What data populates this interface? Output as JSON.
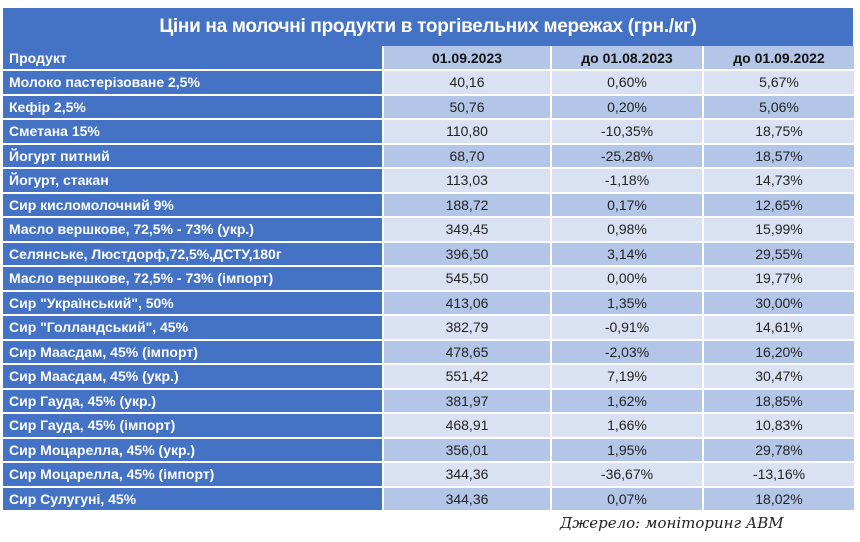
{
  "title": "Ціни на молочні продукти в торгівельних мережах (грн./кг)",
  "columns": [
    "Продукт",
    "01.09.2023",
    "до 01.08.2023",
    "до 01.09.2022"
  ],
  "rows": [
    [
      "Молоко пастерізоване 2,5%",
      "40,16",
      "0,60%",
      "5,67%"
    ],
    [
      "Кефір 2,5%",
      "50,76",
      "0,20%",
      "5,06%"
    ],
    [
      "Сметана 15%",
      "110,80",
      "-10,35%",
      "18,75%"
    ],
    [
      "Йогурт питний",
      "68,70",
      "-25,28%",
      "18,57%"
    ],
    [
      "Йогурт, стакан",
      "113,03",
      "-1,18%",
      "14,73%"
    ],
    [
      "Сир кисломолочний 9%",
      "188,72",
      "0,17%",
      "12,65%"
    ],
    [
      "Масло вершкове, 72,5% - 73% (укр.)",
      "349,45",
      "0,98%",
      "15,99%"
    ],
    [
      "Селянське, Люстдорф,72,5%,ДСТУ,180г",
      "396,50",
      "3,14%",
      "29,55%"
    ],
    [
      "Масло вершкове, 72,5% - 73% (імпорт)",
      "545,50",
      "0,00%",
      "19,77%"
    ],
    [
      "Сир \"Український\", 50%",
      "413,06",
      "1,35%",
      "30,00%"
    ],
    [
      "Сир \"Голландський\", 45%",
      "382,79",
      "-0,91%",
      "14,61%"
    ],
    [
      "Сир Маасдам, 45% (імпорт)",
      "478,65",
      "-2,03%",
      "16,20%"
    ],
    [
      "Сир Маасдам, 45% (укр.)",
      "551,42",
      "7,19%",
      "30,47%"
    ],
    [
      "Сир Гауда, 45% (укр.)",
      "381,97",
      "1,62%",
      "18,85%"
    ],
    [
      "Сир Гауда, 45% (імпорт)",
      "468,91",
      "1,66%",
      "10,83%"
    ],
    [
      "Сир Моцарелла, 45% (укр.)",
      "356,01",
      "1,95%",
      "29,78%"
    ],
    [
      "Сир Моцарелла, 45% (імпорт)",
      "344,36",
      "-36,67%",
      "-13,16%"
    ],
    [
      "Сир Сулугуні, 45%",
      "344,36",
      "0,07%",
      "18,02%"
    ]
  ],
  "source": "Джерело: моніторинг АВМ",
  "colors": {
    "header": "#4472C4",
    "row_light": "#D9E1F2",
    "row_dark": "#B4C6E7"
  }
}
